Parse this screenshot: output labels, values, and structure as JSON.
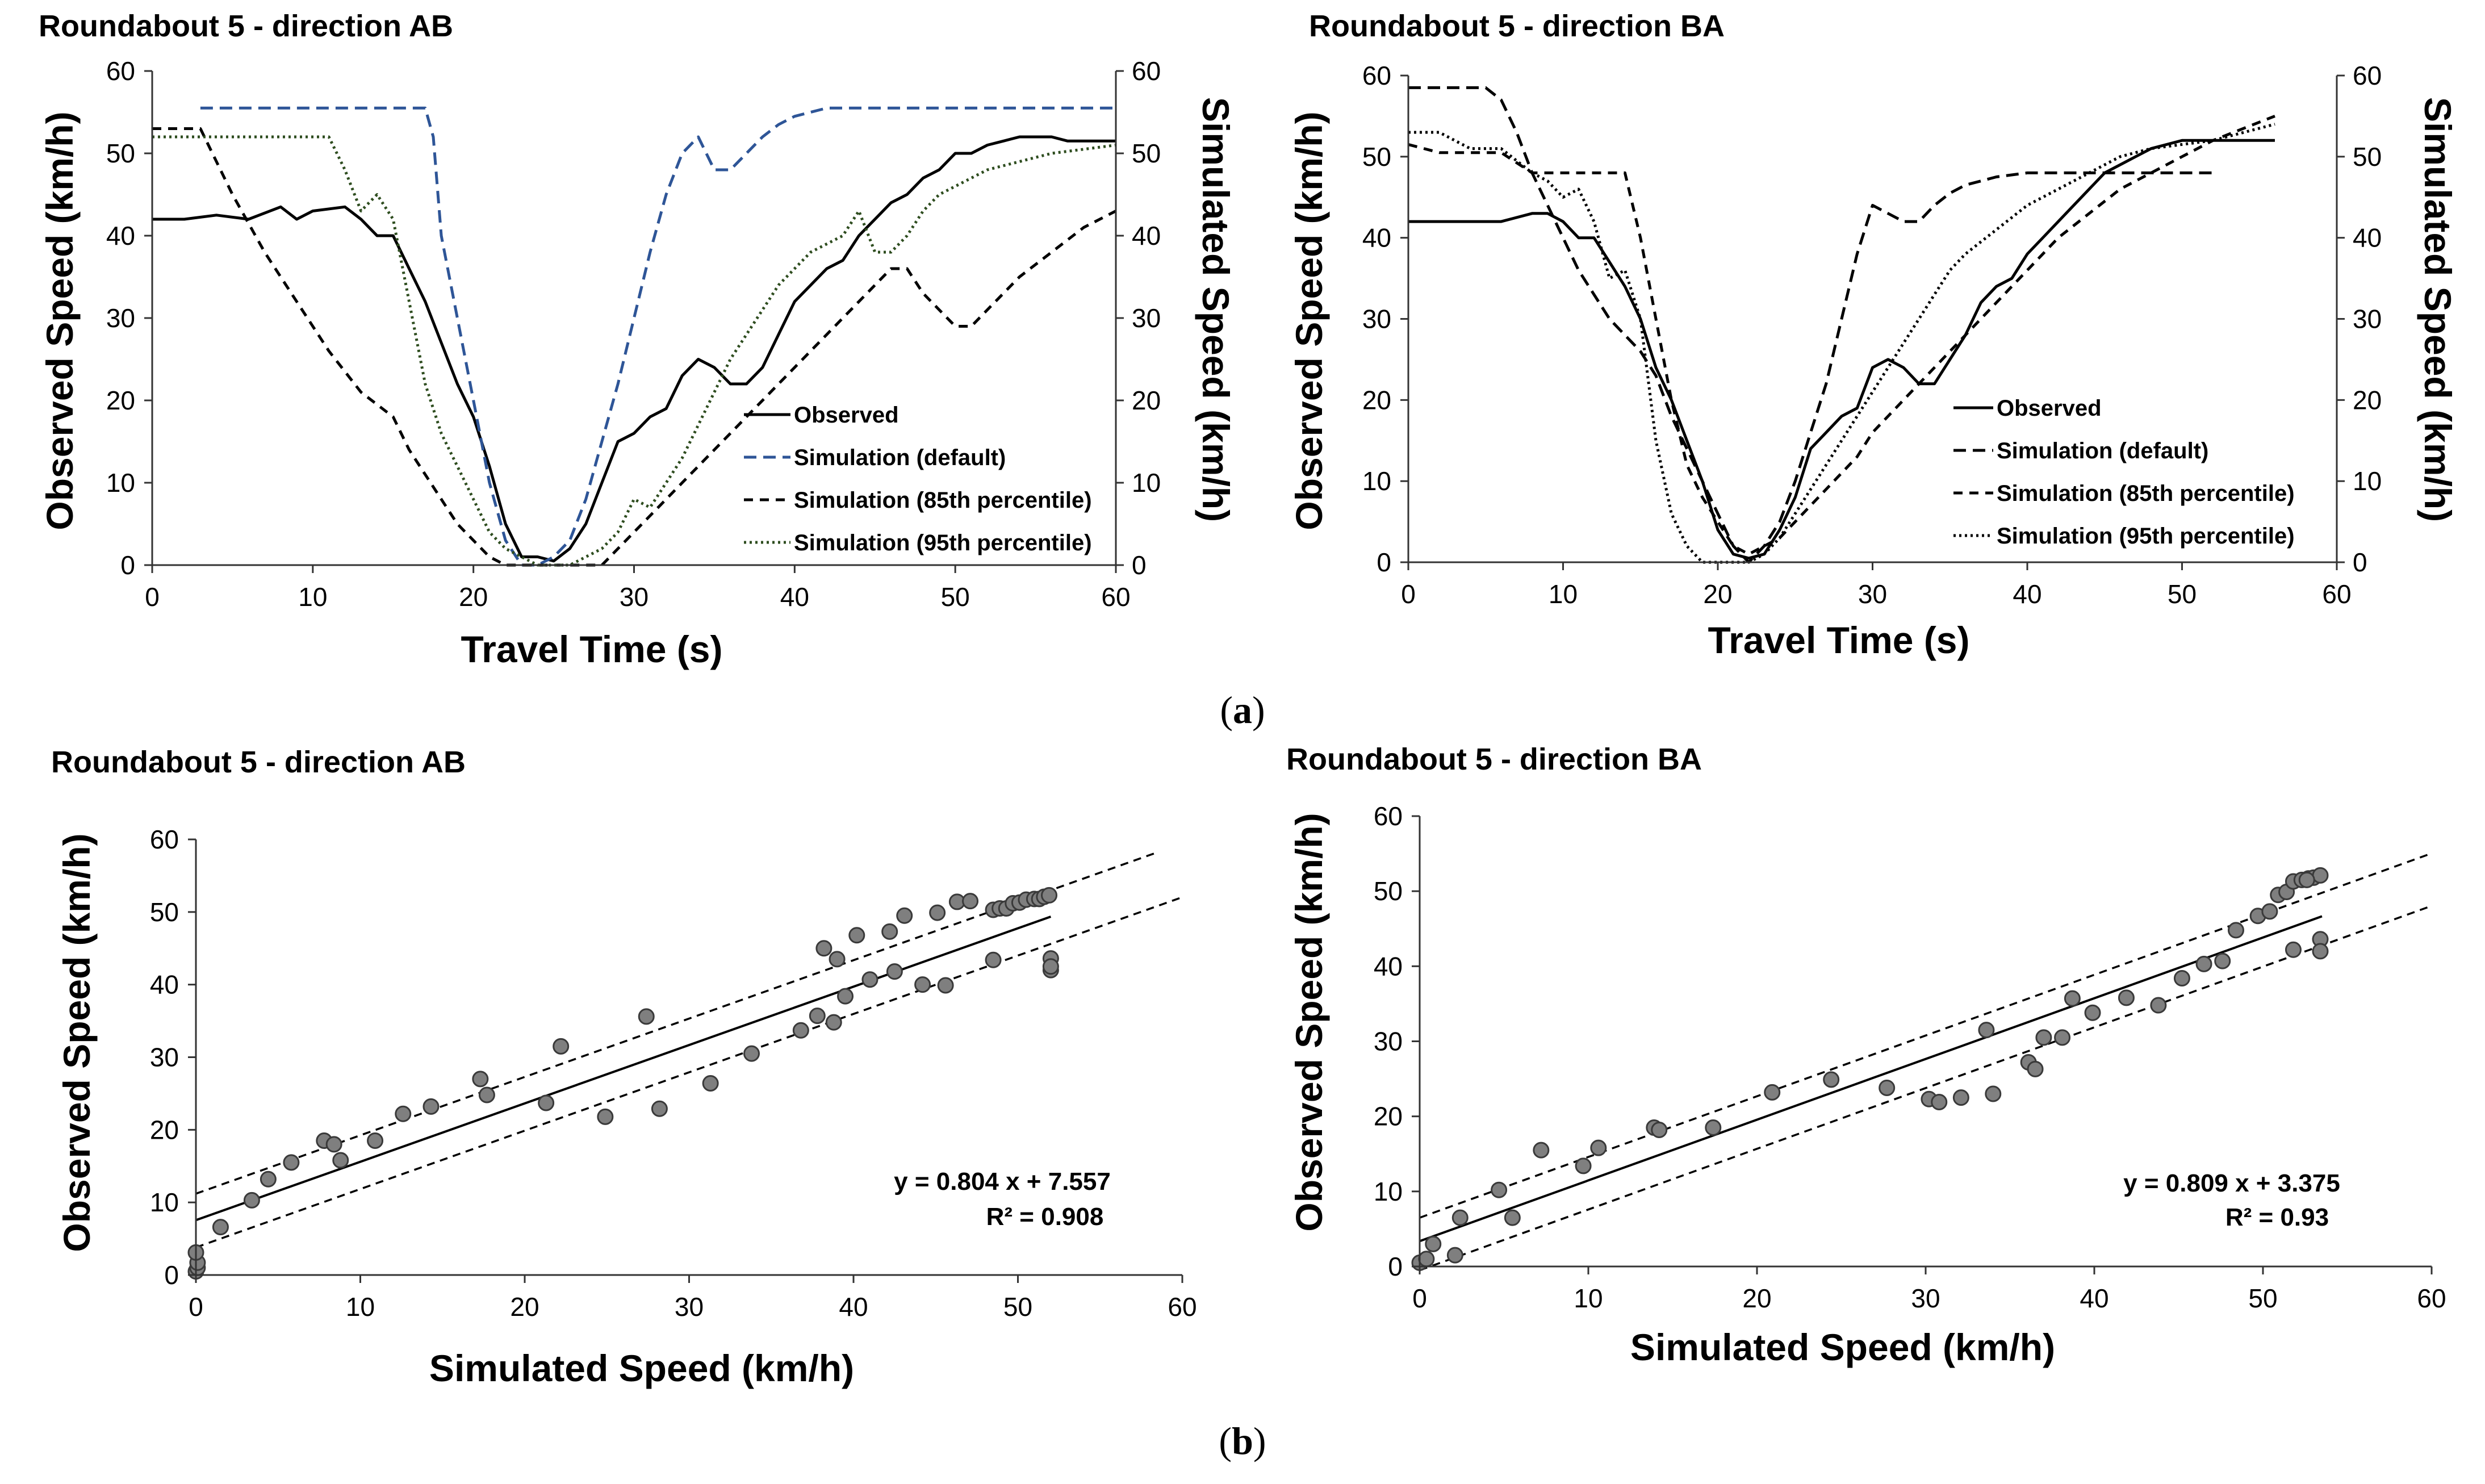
{
  "captions": {
    "a": "(a)",
    "b": "(b)",
    "a_open": "(",
    "a_letter": "a",
    "a_close": ")",
    "b_letter": "b"
  },
  "chart_data": [
    {
      "type": "line",
      "title": "Roundabout 5 - direction AB",
      "xlabel": "Travel Time (s)",
      "ylabel": "Observed Speed (km/h)",
      "y2label": "Simulated Speed (km/h)",
      "xlim": [
        0,
        60
      ],
      "ylim": [
        0,
        60
      ],
      "y2lim": [
        0,
        60
      ],
      "xticks": [
        "0",
        "10",
        "20",
        "30",
        "40",
        "50",
        "60"
      ],
      "yticks": [
        "0",
        "10",
        "20",
        "30",
        "40",
        "50",
        "60"
      ],
      "legend": [
        "Observed",
        "Simulation (default)",
        "Simulation (85th percentile)",
        "Simulation (95th percentile)"
      ],
      "legend_position": "bottom-right",
      "series": [
        {
          "name": "Observed",
          "color": "#000000",
          "dash": "solid",
          "x": [
            0,
            2,
            4,
            6,
            8,
            9,
            10,
            12,
            13,
            14,
            15,
            16,
            17,
            18,
            19,
            20,
            21,
            22,
            23,
            24,
            25,
            26,
            27,
            28,
            29,
            30,
            31,
            32,
            33,
            34,
            35,
            36,
            37,
            38,
            39,
            40,
            41,
            42,
            43,
            44,
            45,
            46,
            47,
            48,
            49,
            50,
            51,
            52,
            53,
            54,
            55,
            56,
            57,
            58,
            59,
            60
          ],
          "y": [
            42,
            42,
            42.5,
            42,
            43.5,
            42,
            43,
            43.5,
            42,
            40,
            40,
            36,
            32,
            27,
            22,
            18,
            12,
            5,
            1,
            1,
            0.5,
            2,
            5,
            10,
            15,
            16,
            18,
            19,
            23,
            25,
            24,
            22,
            22,
            24,
            28,
            32,
            34,
            36,
            37,
            40,
            42,
            44,
            45,
            47,
            48,
            50,
            50,
            51,
            51.5,
            52,
            52,
            52,
            51.5,
            51.5,
            51.5,
            51.5
          ]
        },
        {
          "name": "Simulation (default)",
          "color": "#2E5597",
          "dash": "long",
          "x": [
            3,
            17,
            17.5,
            18,
            19,
            20,
            21,
            22,
            23,
            23.5,
            24,
            25,
            26,
            27,
            28,
            29,
            30,
            31,
            32,
            33,
            34,
            35,
            36,
            37,
            38,
            39,
            40,
            41,
            42,
            44,
            46,
            48,
            50,
            52,
            54,
            56,
            58,
            60
          ],
          "y": [
            55.5,
            55.5,
            52,
            40,
            30,
            20,
            10,
            3,
            0,
            0,
            0,
            1,
            3,
            8,
            15,
            22,
            30,
            38,
            45,
            50,
            52,
            48,
            48,
            50,
            52,
            53.5,
            54.5,
            55,
            55.5,
            55.5,
            55.5,
            55.5,
            55.5,
            55.5,
            55.5,
            55.5,
            55.5,
            55.5
          ]
        },
        {
          "name": "Simulation (85th percentile)",
          "color": "#000000",
          "dash": "medium",
          "x": [
            0,
            3,
            5,
            7,
            9,
            11,
            13,
            15,
            16,
            17,
            18,
            19,
            20,
            21,
            22,
            23,
            24,
            25,
            26,
            27,
            28,
            29,
            30,
            31,
            32,
            33,
            34,
            35,
            36,
            37,
            38,
            39,
            40,
            41,
            42,
            43,
            44,
            45,
            46,
            47,
            48,
            49,
            50,
            51,
            52,
            54,
            56,
            58,
            60
          ],
          "y": [
            53,
            53,
            45,
            38,
            32,
            26,
            21,
            18,
            14,
            11,
            8,
            5,
            3,
            1,
            0,
            0,
            0,
            0,
            0,
            0,
            0,
            2,
            4,
            6,
            8,
            10,
            12,
            14,
            16,
            18,
            20,
            22,
            24,
            26,
            28,
            30,
            32,
            34,
            36,
            36,
            33,
            31,
            29,
            29,
            31,
            35,
            38,
            41,
            43
          ]
        },
        {
          "name": "Simulation (95th percentile)",
          "color": "#2E4D1F",
          "dash": "dot",
          "x": [
            0,
            11,
            12,
            13,
            14,
            15,
            16,
            17,
            18,
            19,
            20,
            21,
            22,
            23,
            24,
            25,
            26,
            27,
            28,
            29,
            30,
            31,
            32,
            33,
            34,
            35,
            36,
            37,
            38,
            39,
            40,
            41,
            42,
            43,
            44,
            45,
            46,
            47,
            48,
            49,
            50,
            52,
            54,
            56,
            58,
            60
          ],
          "y": [
            52,
            52,
            48,
            43,
            45,
            42,
            32,
            22,
            16,
            12,
            8,
            4,
            2,
            1,
            0,
            0,
            0,
            1,
            2,
            4,
            8,
            7,
            10,
            13,
            17,
            21,
            25,
            28,
            31,
            34,
            36,
            38,
            39,
            40,
            43,
            38,
            38,
            40,
            43,
            45,
            46,
            48,
            49,
            50,
            50.5,
            51
          ]
        }
      ]
    },
    {
      "type": "line",
      "title": "Roundabout 5 - direction BA",
      "xlabel": "Travel Time (s)",
      "ylabel": "Observed Speed (km/h)",
      "y2label": "Simulated Speed (km/h)",
      "xlim": [
        0,
        60
      ],
      "ylim": [
        0,
        60
      ],
      "y2lim": [
        0,
        60
      ],
      "xticks": [
        "0",
        "10",
        "20",
        "30",
        "40",
        "50",
        "60"
      ],
      "yticks": [
        "0",
        "10",
        "20",
        "30",
        "40",
        "50",
        "60"
      ],
      "legend": [
        "Observed",
        "Simulation (default)",
        "Simulation (85th percentile)",
        "Simulation (95th percentile)"
      ],
      "legend_position": "bottom-right",
      "series": [
        {
          "name": "Observed",
          "color": "#000000",
          "dash": "solid",
          "x": [
            0,
            2,
            4,
            6,
            8,
            9,
            10,
            11,
            12,
            13,
            14,
            15,
            16,
            17,
            18,
            19,
            20,
            21,
            22,
            23,
            24,
            25,
            26,
            27,
            28,
            29,
            30,
            31,
            32,
            33,
            34,
            35,
            36,
            37,
            38,
            39,
            40,
            41,
            42,
            43,
            44,
            45,
            46,
            47,
            48,
            50,
            52,
            54,
            56
          ],
          "y": [
            42,
            42,
            42,
            42,
            43,
            43,
            42,
            40,
            40,
            37,
            34,
            30,
            24,
            20,
            15,
            10,
            4,
            1,
            0.5,
            1,
            4,
            8,
            14,
            16,
            18,
            19,
            24,
            25,
            24,
            22,
            22,
            25,
            28,
            32,
            34,
            35,
            38,
            40,
            42,
            44,
            46,
            48,
            49,
            50,
            51,
            52,
            52,
            52,
            52
          ]
        },
        {
          "name": "Simulation (default)",
          "color": "#000000",
          "dash": "long",
          "x": [
            0,
            5,
            6,
            7,
            8,
            9,
            10,
            11,
            12,
            13,
            14,
            15,
            16,
            17,
            18,
            19,
            20,
            21,
            22,
            23,
            24,
            25,
            26,
            27,
            28,
            29,
            30,
            31,
            32,
            33,
            34,
            35,
            36,
            37,
            38,
            40,
            42,
            44,
            46,
            48,
            50,
            52
          ],
          "y": [
            58.5,
            58.5,
            57,
            53,
            48,
            44,
            40,
            36,
            33,
            30,
            28,
            26,
            23,
            18,
            14,
            10,
            6,
            2,
            0,
            2,
            5,
            10,
            16,
            22,
            30,
            38,
            44,
            43,
            42,
            42,
            44,
            45.5,
            46.5,
            47,
            47.5,
            48,
            48,
            48,
            48,
            48,
            48,
            48
          ]
        },
        {
          "name": "Simulation (85th percentile)",
          "color": "#000000",
          "dash": "medium",
          "x": [
            0,
            2,
            4,
            6,
            8,
            9,
            10,
            11,
            12,
            13,
            14,
            15,
            16,
            17,
            18,
            19,
            20,
            21,
            22,
            23,
            24,
            25,
            26,
            27,
            28,
            29,
            30,
            32,
            34,
            36,
            38,
            40,
            42,
            44,
            46,
            48,
            50,
            52,
            54,
            56
          ],
          "y": [
            51.5,
            50.5,
            50.5,
            50.5,
            48,
            48,
            48,
            48,
            48,
            48,
            48,
            40,
            30,
            20,
            12,
            8,
            5,
            2,
            1,
            2,
            3,
            5,
            7,
            9,
            11,
            13,
            16,
            20,
            24,
            28,
            32,
            36,
            40,
            43,
            46,
            48,
            50,
            52,
            53.5,
            55
          ]
        },
        {
          "name": "Simulation (95th percentile)",
          "color": "#000000",
          "dash": "dot",
          "x": [
            0,
            2,
            4,
            6,
            8,
            9,
            10,
            11,
            12,
            13,
            14,
            15,
            16,
            17,
            18,
            19,
            20,
            21,
            22,
            23,
            24,
            25,
            26,
            27,
            28,
            29,
            30,
            31,
            32,
            33,
            34,
            35,
            36,
            38,
            40,
            42,
            44,
            46,
            48,
            50,
            52,
            54,
            56
          ],
          "y": [
            53,
            53,
            51,
            51,
            48,
            47,
            45,
            46,
            42,
            35,
            36,
            30,
            15,
            6,
            2,
            0,
            0,
            0,
            0,
            1,
            3,
            6,
            9,
            12,
            15,
            18,
            21,
            24,
            27,
            30,
            33,
            36,
            38,
            41,
            44,
            46,
            48,
            50,
            51,
            51.5,
            52,
            53,
            54
          ]
        }
      ]
    },
    {
      "type": "scatter",
      "title": "Roundabout 5 - direction AB",
      "xlabel": "Simulated Speed (km/h)",
      "ylabel": "Observed Speed (km/h)",
      "xlim": [
        0,
        60
      ],
      "ylim": [
        0,
        60
      ],
      "xticks": [
        "0",
        "10",
        "20",
        "30",
        "40",
        "50",
        "60"
      ],
      "yticks": [
        "0",
        "10",
        "20",
        "30",
        "40",
        "50",
        "60"
      ],
      "annotation": {
        "equation": "y = 0.804 x + 7.557",
        "r2": "R² = 0.908"
      },
      "fit": {
        "slope": 0.804,
        "intercept": 7.557,
        "x_range": [
          0,
          52
        ]
      },
      "bands": [
        {
          "slope": 0.804,
          "intercept": 11.2,
          "x_range": [
            0,
            58.5
          ]
        },
        {
          "slope": 0.804,
          "intercept": 3.8,
          "x_range": [
            0,
            60
          ]
        }
      ],
      "x": [
        0,
        0.1,
        0.1,
        0,
        1.5,
        3.4,
        4.4,
        5.8,
        7.8,
        8.4,
        8.8,
        10.9,
        12.6,
        14.3,
        17.3,
        17.7,
        21.3,
        22.2,
        24.9,
        27.4,
        28.2,
        31.3,
        33.8,
        36.8,
        37.8,
        38.2,
        38.8,
        39,
        39.5,
        40.2,
        41,
        42.2,
        42.5,
        43.1,
        44.2,
        45.1,
        45.6,
        46.3,
        47.1,
        48.5,
        48.9,
        49.3,
        49.7,
        50.1,
        50.5,
        51,
        51.3,
        51.6,
        51.9,
        52,
        52,
        52,
        48.5
      ],
      "y": [
        0.5,
        1,
        1.7,
        3.1,
        6.6,
        10.3,
        13.2,
        15.5,
        18.5,
        18,
        15.8,
        18.5,
        22.2,
        23.2,
        27,
        24.8,
        23.7,
        31.5,
        21.8,
        35.6,
        22.9,
        26.4,
        30.5,
        33.7,
        35.7,
        45,
        34.8,
        43.5,
        38.4,
        46.8,
        40.7,
        47.3,
        41.8,
        49.5,
        40,
        49.9,
        39.9,
        51.4,
        51.5,
        50.3,
        50.5,
        50.5,
        51.2,
        51.3,
        51.7,
        51.8,
        51.8,
        52.1,
        52.3,
        43.6,
        42,
        42.5,
        43.4
      ]
    },
    {
      "type": "scatter",
      "title": "Roundabout 5 - direction BA",
      "xlabel": "Simulated Speed (km/h)",
      "ylabel": "Observed Speed (km/h)",
      "xlim": [
        0,
        60
      ],
      "ylim": [
        0,
        60
      ],
      "xticks": [
        "0",
        "10",
        "20",
        "30",
        "40",
        "50",
        "60"
      ],
      "yticks": [
        "0",
        "10",
        "20",
        "30",
        "40",
        "50",
        "60"
      ],
      "annotation": {
        "equation": "y = 0.809 x + 3.375",
        "r2": "R² = 0.93"
      },
      "fit": {
        "slope": 0.809,
        "intercept": 3.375,
        "x_range": [
          0,
          53.5
        ]
      },
      "bands": [
        {
          "slope": 0.809,
          "intercept": 6.5,
          "x_range": [
            0,
            60
          ]
        },
        {
          "slope": 0.809,
          "intercept": -0.5,
          "x_range": [
            0,
            60
          ]
        }
      ],
      "x": [
        0,
        0.4,
        0.8,
        2.1,
        2.4,
        4.7,
        5.5,
        7.2,
        9.7,
        10.6,
        13.9,
        14.2,
        17.4,
        20.9,
        24.4,
        27.7,
        30.2,
        30.8,
        32.1,
        33.6,
        34,
        36.1,
        36.5,
        37,
        38.1,
        38.7,
        39.9,
        41.9,
        43.8,
        45.2,
        46.5,
        47.6,
        48.4,
        49.7,
        50.4,
        50.9,
        51.4,
        51.8,
        52.3,
        52.7,
        53,
        53.4,
        53.4,
        53.4,
        51.8,
        52.6
      ],
      "y": [
        0.5,
        1,
        3,
        1.5,
        6.5,
        10.2,
        6.5,
        15.5,
        13.4,
        15.8,
        18.5,
        18.2,
        18.5,
        23.2,
        24.9,
        23.8,
        22.3,
        21.9,
        22.5,
        31.5,
        23,
        27.2,
        26.3,
        30.5,
        30.5,
        35.7,
        33.8,
        35.8,
        34.8,
        38.4,
        40.3,
        40.7,
        44.8,
        46.7,
        47.3,
        49.5,
        49.9,
        51.3,
        51.5,
        51.7,
        51.8,
        52.1,
        43.6,
        42,
        42.2,
        51.5
      ]
    }
  ]
}
